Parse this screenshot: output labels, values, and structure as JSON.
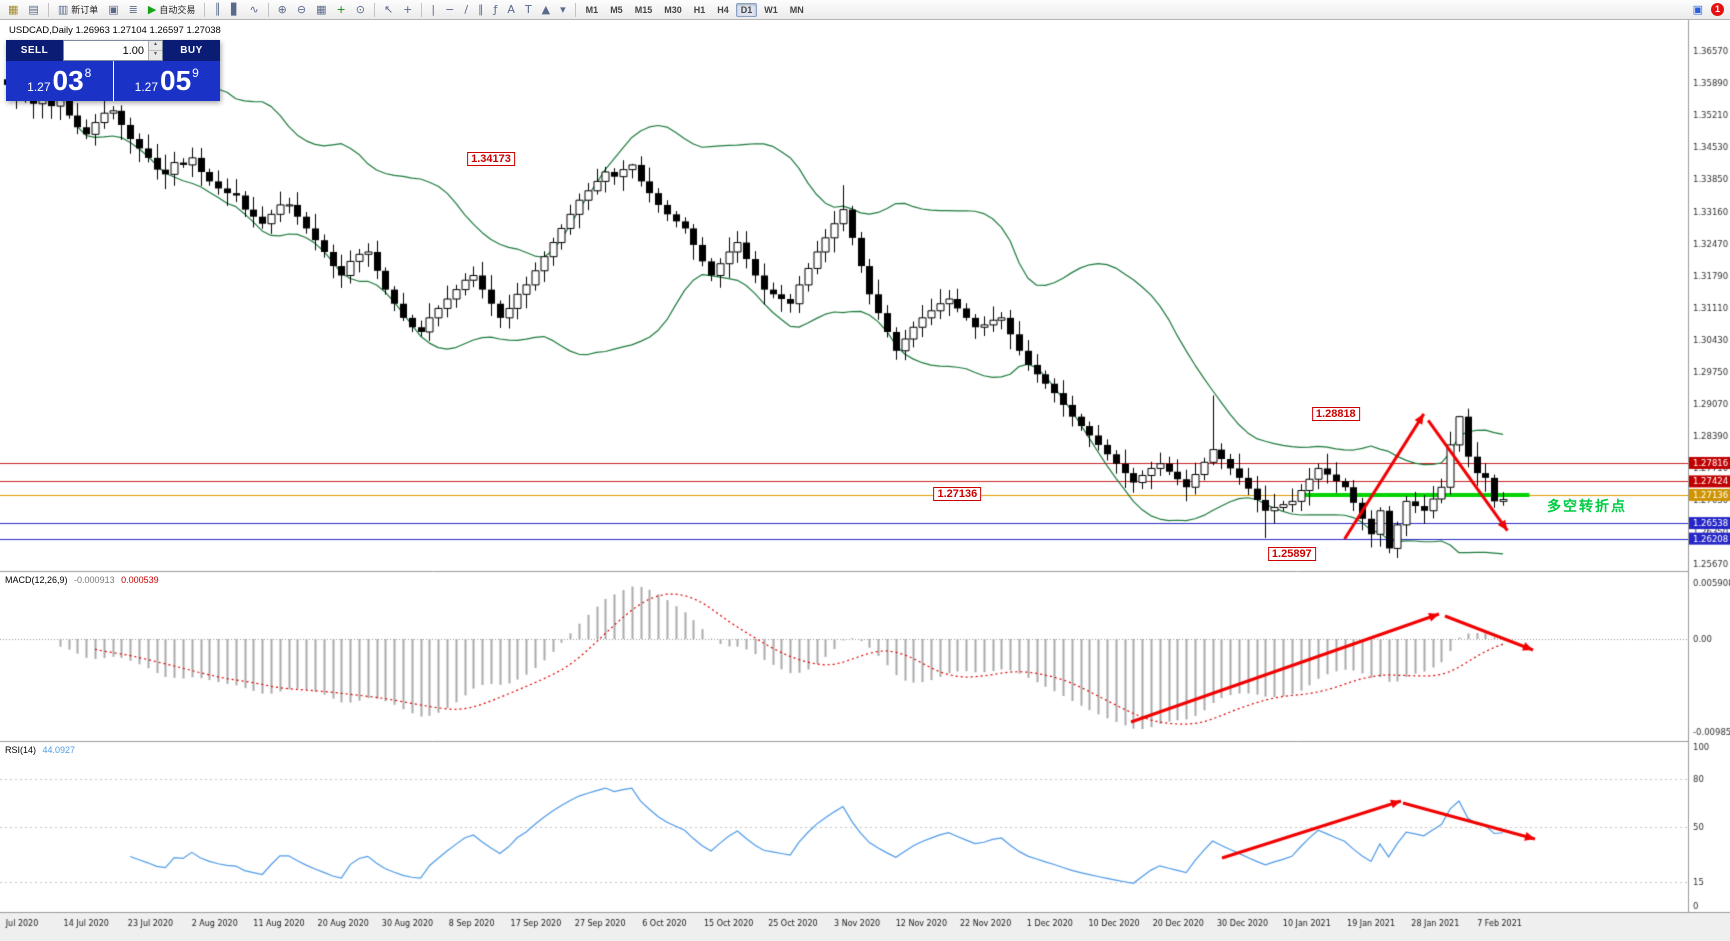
{
  "window": {
    "title_overlay": "USDCAD,Daily 1.26963 1.27104 1.26597 1.27038"
  },
  "toolbar": {
    "buttons": [
      {
        "name": "new-chart-button",
        "glyph": "▦",
        "glyph_color": "#a08a28"
      },
      {
        "name": "profiles-button",
        "glyph": "▤"
      },
      {
        "type": "sep"
      },
      {
        "name": "new-order-button",
        "glyph": "▥",
        "label": "新订单"
      },
      {
        "name": "chart-window-button",
        "glyph": "▣"
      },
      {
        "name": "market-watch-button",
        "glyph": "≣"
      },
      {
        "name": "autotrading-button",
        "glyph": "▶",
        "glyph_color": "#17a317",
        "label": "自动交易"
      },
      {
        "type": "sep"
      },
      {
        "name": "bar-chart-button",
        "glyph": "║"
      },
      {
        "name": "candlestick-chart-button",
        "glyph": "▋"
      },
      {
        "name": "line-chart-button",
        "glyph": "∿"
      },
      {
        "type": "sep"
      },
      {
        "name": "zoom-in-button",
        "glyph": "⊕"
      },
      {
        "name": "zoom-out-button",
        "glyph": "⊖"
      },
      {
        "name": "tile-windows-button",
        "glyph": "▦"
      },
      {
        "name": "indicators-button",
        "glyph": "+",
        "glyph_color": "#108810"
      },
      {
        "name": "periods-button",
        "glyph": "⊙"
      },
      {
        "type": "sep"
      },
      {
        "name": "cursor-button",
        "glyph": "↖"
      },
      {
        "name": "crosshair-button",
        "glyph": "+"
      },
      {
        "type": "sep"
      },
      {
        "name": "vertical-line-button",
        "glyph": "|"
      },
      {
        "name": "horizontal-line-button",
        "glyph": "−"
      },
      {
        "name": "trendline-button",
        "glyph": "/"
      },
      {
        "name": "channel-button",
        "glyph": "∥"
      },
      {
        "name": "fibonacci-button",
        "glyph": "ƒ"
      },
      {
        "name": "text-button",
        "glyph": "A"
      },
      {
        "name": "label-button",
        "glyph": "T"
      },
      {
        "name": "shapes-button",
        "glyph": "▲"
      },
      {
        "name": "shapes-dropdown",
        "glyph": "▾"
      },
      {
        "type": "sep"
      }
    ],
    "timeframes": {
      "items": [
        "M1",
        "M5",
        "M15",
        "M30",
        "H1",
        "H4",
        "D1",
        "W1",
        "MN"
      ],
      "active": "D1"
    },
    "notification_count": "1"
  },
  "trade_panel": {
    "sell_label": "SELL",
    "buy_label": "BUY",
    "volume": "1.00",
    "sell_price": {
      "small": "1.27",
      "big": "03",
      "sup": "8"
    },
    "buy_price": {
      "small": "1.27",
      "big": "05",
      "sup": "9"
    }
  },
  "chart_data": {
    "type": "candlestick",
    "symbol": "USDCAD",
    "timeframe": "Daily",
    "current_bar": {
      "open": "1.26963",
      "high": "1.27104",
      "low": "1.26597",
      "close": "1.27038"
    },
    "price_axis": {
      "top_price": 1.3723,
      "bottom_price": 1.2552,
      "grid_labels": [
        "1.36570",
        "1.35890",
        "1.35210",
        "1.34530",
        "1.33850",
        "1.33160",
        "1.32470",
        "1.31790",
        "1.31110",
        "1.30430",
        "1.29750",
        "1.29070",
        "1.28390",
        "1.27710",
        "1.27030",
        "1.26350",
        "1.25670"
      ],
      "tags": [
        {
          "label": "1.27816",
          "price": 1.27816,
          "color": "#c00000"
        },
        {
          "label": "1.27424",
          "price": 1.27424,
          "color": "#c00000"
        },
        {
          "label": "1.27136",
          "price": 1.27136,
          "color": "#cf9400"
        },
        {
          "label": "1.26538",
          "price": 1.26538,
          "color": "#2525c8"
        },
        {
          "label": "1.26208",
          "price": 1.26208,
          "color": "#2525c8"
        }
      ]
    },
    "hlines": [
      {
        "price": 1.27816,
        "color": "#cc2222",
        "width": 1
      },
      {
        "price": 1.27424,
        "color": "#cc2222",
        "width": 1
      },
      {
        "price": 1.27136,
        "color": "#e09a00",
        "width": 1
      },
      {
        "price": 1.26538,
        "color": "#2c2ccc",
        "width": 1
      },
      {
        "price": 1.26208,
        "color": "#2c2ccc",
        "width": 1
      }
    ],
    "green_segment": {
      "from_candle": 147,
      "to_candle": 173,
      "price": 1.27136,
      "color": "#00d400",
      "width": 4
    },
    "bollinger": {
      "period": 20,
      "deviation": 2,
      "color": "#1d7a3c"
    },
    "candle_rule": "open equals previous close; wick extremes approximate except overrides",
    "closes": [
      1.3585,
      1.356,
      1.3575,
      1.3545,
      1.3555,
      1.354,
      1.356,
      1.352,
      1.3495,
      1.348,
      1.3505,
      1.3525,
      1.353,
      1.35,
      1.347,
      1.345,
      1.343,
      1.3405,
      1.3395,
      1.342,
      1.3415,
      1.343,
      1.34,
      1.338,
      1.3365,
      1.3355,
      1.335,
      1.332,
      1.3305,
      1.329,
      1.331,
      1.333,
      1.333,
      1.3305,
      1.328,
      1.3255,
      1.323,
      1.32,
      1.318,
      1.321,
      1.3225,
      1.323,
      1.319,
      1.315,
      1.312,
      1.309,
      1.307,
      1.306,
      1.309,
      1.311,
      1.313,
      1.315,
      1.317,
      1.318,
      1.315,
      1.312,
      1.309,
      1.311,
      1.314,
      1.316,
      1.319,
      1.322,
      1.325,
      1.328,
      1.331,
      1.334,
      1.336,
      1.338,
      1.34,
      1.339,
      1.3405,
      1.3415,
      1.338,
      1.3355,
      1.333,
      1.331,
      1.3295,
      1.328,
      1.3245,
      1.321,
      1.318,
      1.3205,
      1.323,
      1.325,
      1.3215,
      1.318,
      1.315,
      1.314,
      1.313,
      1.312,
      1.316,
      1.3195,
      1.323,
      1.326,
      1.329,
      1.332,
      1.326,
      1.32,
      1.314,
      1.31,
      1.306,
      1.302,
      1.3045,
      1.307,
      1.309,
      1.3105,
      1.312,
      1.313,
      1.311,
      1.309,
      1.307,
      1.3075,
      1.3085,
      1.309,
      1.3055,
      1.302,
      1.299,
      1.297,
      1.295,
      1.293,
      1.2905,
      1.288,
      1.286,
      1.284,
      1.282,
      1.28,
      1.278,
      1.276,
      1.274,
      1.2755,
      1.277,
      1.278,
      1.2763,
      1.2747,
      1.273,
      1.2757,
      1.2783,
      1.281,
      1.279,
      1.277,
      1.275,
      1.2727,
      1.2703,
      1.268,
      1.2687,
      1.2693,
      1.27,
      1.2723,
      1.2747,
      1.277,
      1.2757,
      1.2743,
      1.273,
      1.2697,
      1.2663,
      1.263,
      1.268,
      1.26,
      1.265,
      1.27,
      1.269,
      1.268,
      1.2705,
      1.273,
      1.282,
      1.288,
      1.2795,
      1.276,
      1.275,
      1.27,
      1.2704
    ],
    "wick_overrides": [
      {
        "index": 71,
        "high": 1.34173
      },
      {
        "index": 95,
        "high": 1.3372
      },
      {
        "index": 137,
        "high": 1.2925
      },
      {
        "index": 143,
        "low": 1.2622
      },
      {
        "index": 157,
        "low": 1.25897
      },
      {
        "index": 165,
        "high": 1.28818
      }
    ],
    "macd": {
      "label": "MACD(12,26,9)",
      "values": [
        "-0.000913",
        "0.000539"
      ],
      "fast": 12,
      "slow": 26,
      "signal_period": 9,
      "axis_labels": [
        {
          "text": "0.005908",
          "value": 0.005908
        },
        {
          "text": "0.00",
          "value": 0
        },
        {
          "text": "-0.009851",
          "value": -0.009851
        }
      ],
      "range": [
        -0.01078,
        0.00719
      ],
      "histogram_color": "#ababab",
      "signal_color": "#e00000"
    },
    "rsi": {
      "label": "RSI(14)",
      "value": "44.0927",
      "period": 14,
      "levels": [
        "100",
        "80",
        "50",
        "15",
        "0"
      ],
      "color": "#4f9be8"
    },
    "time_axis": {
      "labels": [
        "Jul 2020",
        "14 Jul 2020",
        "23 Jul 2020",
        "2 Aug 2020",
        "11 Aug 2020",
        "20 Aug 2020",
        "30 Aug 2020",
        "8 Sep 2020",
        "17 Sep 2020",
        "27 Sep 2020",
        "6 Oct 2020",
        "15 Oct 2020",
        "25 Oct 2020",
        "3 Nov 2020",
        "12 Nov 2020",
        "22 Nov 2020",
        "1 Dec 2020",
        "10 Dec 2020",
        "20 Dec 2020",
        "30 Dec 2020",
        "10 Jan 2021",
        "19 Jan 2021",
        "28 Jan 2021",
        "7 Feb 2021"
      ]
    },
    "annotations": {
      "price_labels": [
        {
          "name": "sep-high-price-label",
          "text": "1.34173",
          "candle": 55,
          "price": 1.3427
        },
        {
          "name": "jan-high-price-label",
          "text": "1.28818",
          "candle": 151,
          "price": 1.2886
        },
        {
          "name": "pivot-price-label",
          "text": "1.27136",
          "candle": 108,
          "price": 1.2715
        },
        {
          "name": "jan-low-price-label",
          "text": "1.25897",
          "candle": 146,
          "price": 1.2588
        }
      ],
      "pivot_text": {
        "text": "多空转折点",
        "candle": 175,
        "price": 1.269,
        "color": "#00cc44"
      },
      "arrow_color": "#f20000",
      "main_arrows": [
        {
          "from": [
            152,
            1.262
          ],
          "to": [
            161,
            1.2886
          ]
        },
        {
          "from": [
            161.5,
            1.2872
          ],
          "to": [
            170.5,
            1.2638
          ]
        }
      ],
      "macd_arrows": [
        {
          "from": [
            1131,
            722
          ],
          "to": [
            1439,
            614
          ]
        },
        {
          "from": [
            1445,
            616
          ],
          "to": [
            1533,
            650
          ]
        }
      ],
      "rsi_arrows": [
        {
          "from": [
            1222,
            858
          ],
          "to": [
            1401,
            801
          ]
        },
        {
          "from": [
            1403,
            803
          ],
          "to": [
            1535,
            839
          ]
        }
      ]
    }
  }
}
